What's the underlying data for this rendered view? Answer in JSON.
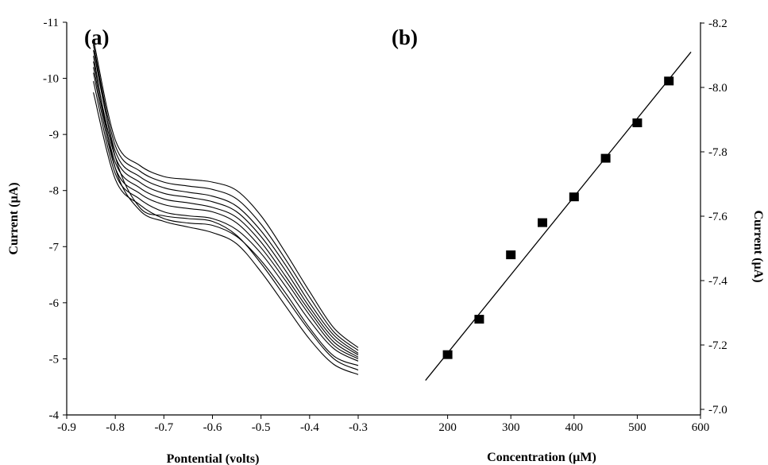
{
  "chart_data": [
    {
      "panel": "(a)",
      "type": "line",
      "xlabel": "Pontential (volts)",
      "ylabel": "Current (µA)",
      "xlim": [
        -0.9,
        -0.3
      ],
      "ylim": [
        -4,
        -11
      ],
      "x_ticks": [
        "-0.9",
        "-0.8",
        "-0.7",
        "-0.6",
        "-0.5",
        "-0.4",
        "-0.3"
      ],
      "y_ticks": [
        "-4",
        "-5",
        "-6",
        "-7",
        "-8",
        "-9",
        "-10",
        "-11"
      ],
      "x": [
        -0.845,
        -0.8,
        -0.75,
        -0.7,
        -0.65,
        -0.6,
        -0.55,
        -0.5,
        -0.45,
        -0.4,
        -0.35,
        -0.3
      ],
      "series": [
        {
          "values": [
            -10.7,
            -8.9,
            -8.45,
            -8.25,
            -8.2,
            -8.15,
            -8.0,
            -7.55,
            -6.9,
            -6.2,
            -5.55,
            -5.2
          ]
        },
        {
          "values": [
            -10.6,
            -8.8,
            -8.35,
            -8.15,
            -8.08,
            -8.02,
            -7.85,
            -7.4,
            -6.78,
            -6.1,
            -5.48,
            -5.15
          ]
        },
        {
          "values": [
            -10.5,
            -8.7,
            -8.25,
            -8.05,
            -7.97,
            -7.9,
            -7.72,
            -7.28,
            -6.68,
            -6.0,
            -5.42,
            -5.1
          ]
        },
        {
          "values": [
            -10.3,
            -8.6,
            -8.15,
            -7.95,
            -7.88,
            -7.8,
            -7.62,
            -7.18,
            -6.58,
            -5.92,
            -5.36,
            -5.07
          ]
        },
        {
          "values": [
            -10.2,
            -8.5,
            -8.05,
            -7.85,
            -7.78,
            -7.7,
            -7.52,
            -7.08,
            -6.48,
            -5.85,
            -5.3,
            -5.03
          ]
        },
        {
          "values": [
            -10.1,
            -8.4,
            -7.95,
            -7.75,
            -7.68,
            -7.62,
            -7.42,
            -6.98,
            -6.4,
            -5.78,
            -5.24,
            -5.0
          ]
        },
        {
          "values": [
            -9.95,
            -8.3,
            -7.85,
            -7.62,
            -7.55,
            -7.5,
            -7.3,
            -6.88,
            -6.3,
            -5.68,
            -5.18,
            -4.96
          ]
        },
        {
          "values": [
            -9.75,
            -8.2,
            -7.75,
            -7.5,
            -7.42,
            -7.38,
            -7.18,
            -6.75,
            -6.18,
            -5.55,
            -5.05,
            -4.88
          ]
        },
        {
          "values": [
            -10.6,
            -8.6,
            -7.7,
            -7.55,
            -7.5,
            -7.45,
            -7.2,
            -6.7,
            -6.1,
            -5.5,
            -5.0,
            -4.8
          ]
        },
        {
          "values": [
            -10.4,
            -8.4,
            -7.65,
            -7.45,
            -7.35,
            -7.25,
            -7.05,
            -6.55,
            -5.95,
            -5.35,
            -4.9,
            -4.72
          ]
        }
      ]
    },
    {
      "panel": "(b)",
      "type": "scatter",
      "xlabel": "Concentration (µM)",
      "ylabel": "Current (µA)",
      "xlim": [
        100,
        600
      ],
      "ylim": [
        -7.0,
        -8.2
      ],
      "x_ticks": [
        "200",
        "300",
        "400",
        "500",
        "600"
      ],
      "y_ticks": [
        "-7.0",
        "-7.2",
        "-7.4",
        "-7.6",
        "-7.8",
        "-8.0",
        "-8.2"
      ],
      "x": [
        200,
        250,
        300,
        350,
        400,
        450,
        500,
        550
      ],
      "values": [
        -7.17,
        -7.28,
        -7.48,
        -7.58,
        -7.66,
        -7.78,
        -7.89,
        -8.02
      ],
      "fit_line": {
        "x": [
          165,
          585
        ],
        "y": [
          -7.09,
          -8.11
        ]
      }
    }
  ]
}
